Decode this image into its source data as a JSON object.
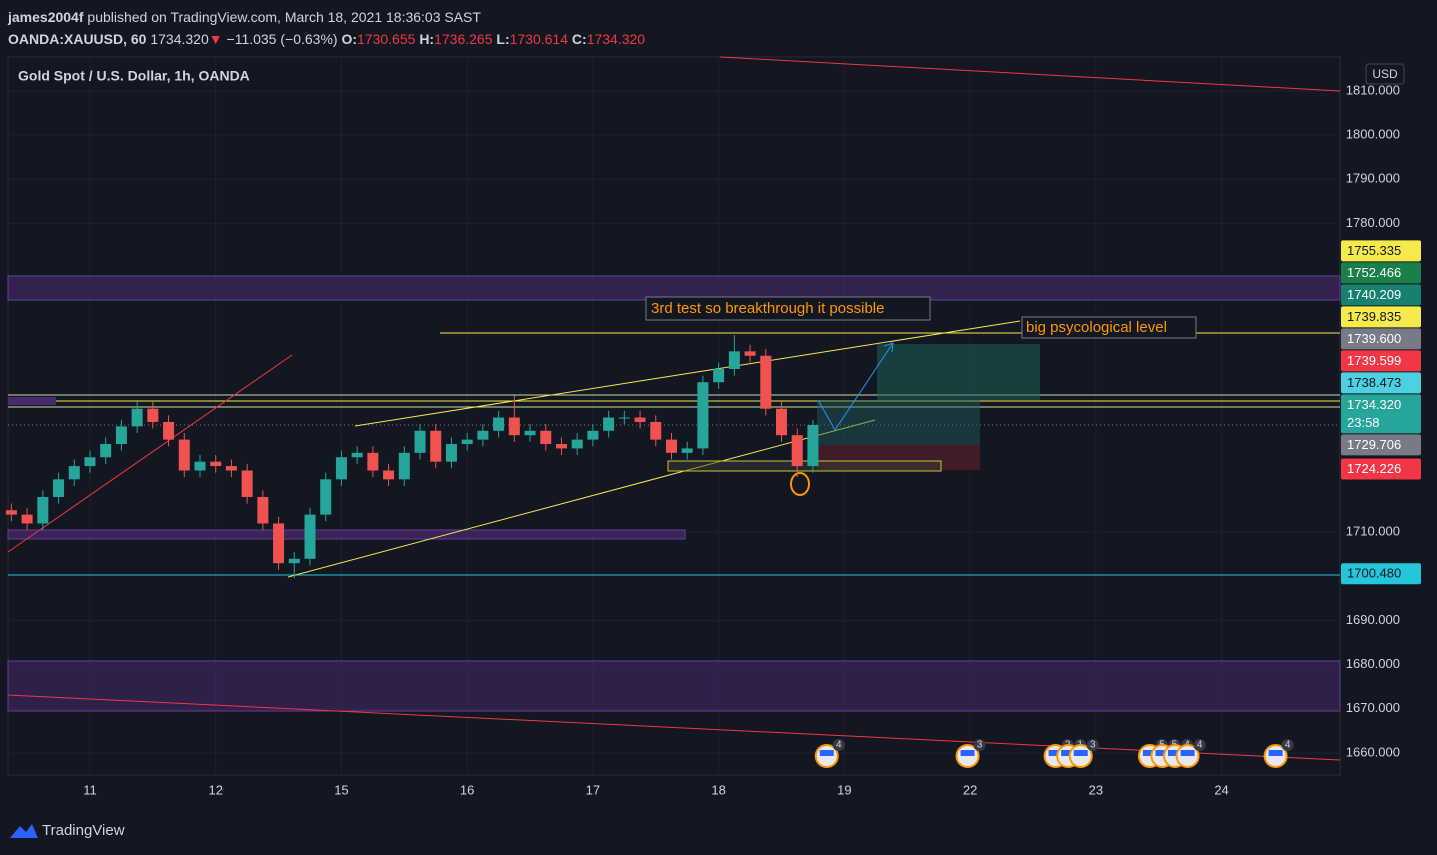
{
  "header": {
    "user": "james2004f",
    "published": "published on TradingView.com, March 18, 2021 18:36:03 SAST",
    "symbol": "OANDA:XAUUSD, 60",
    "last": "1734.320",
    "arrow": "▼",
    "change": "−11.035 (−0.63%)",
    "o_label": "O:",
    "open": "1730.655",
    "h_label": "H:",
    "high": "1736.265",
    "l_label": "L:",
    "low": "1730.614",
    "c_label": "C:",
    "close": "1734.320"
  },
  "footer": {
    "brand": "TradingView"
  },
  "chart_data": {
    "type": "candlestick",
    "title": "Gold Spot / U.S. Dollar, 1h, OANDA",
    "currency": "USD",
    "up_color": "#26a69a",
    "down_color": "#ef5350",
    "grid": true,
    "xlim": [
      0.348,
      10.942
    ],
    "ylim": [
      1655,
      1817.7
    ],
    "xticks": [
      {
        "value": 1,
        "label": "11"
      },
      {
        "value": 2,
        "label": "12"
      },
      {
        "value": 3,
        "label": "15"
      },
      {
        "value": 4,
        "label": "16"
      },
      {
        "value": 5,
        "label": "17"
      },
      {
        "value": 6,
        "label": "18"
      },
      {
        "value": 7,
        "label": "19"
      },
      {
        "value": 8,
        "label": "22"
      },
      {
        "value": 9,
        "label": "23"
      },
      {
        "value": 10,
        "label": "24"
      }
    ],
    "yticks": [
      {
        "value": 1660,
        "label": "1660.000"
      },
      {
        "value": 1670,
        "label": "1670.000"
      },
      {
        "value": 1680,
        "label": "1680.000"
      },
      {
        "value": 1690,
        "label": "1690.000"
      },
      {
        "value": 1710,
        "label": "1710.000"
      },
      {
        "value": 1780,
        "label": "1780.000"
      },
      {
        "value": 1790,
        "label": "1790.000"
      },
      {
        "value": 1800,
        "label": "1800.000"
      },
      {
        "value": 1810,
        "label": "1810.000"
      }
    ],
    "x": [
      0.375,
      0.5,
      0.625,
      0.75,
      0.875,
      1.0,
      1.125,
      1.25,
      1.375,
      1.5,
      1.625,
      1.75,
      1.875,
      2.0,
      2.125,
      2.25,
      2.375,
      2.5,
      2.625,
      2.75,
      2.875,
      3.0,
      3.125,
      3.25,
      3.375,
      3.5,
      3.625,
      3.75,
      3.875,
      4.0,
      4.125,
      4.25,
      4.375,
      4.5,
      4.625,
      4.75,
      4.875,
      5.0,
      5.125,
      5.25,
      5.375,
      5.5,
      5.625,
      5.75,
      5.875,
      6.0,
      6.125,
      6.25,
      6.375,
      6.5,
      6.625,
      6.75
    ],
    "open": [
      1715,
      1714,
      1712,
      1718,
      1722,
      1725,
      1727,
      1730,
      1734,
      1738,
      1735,
      1731,
      1724,
      1726,
      1725,
      1724,
      1718,
      1712,
      1703,
      1704,
      1714,
      1722,
      1727,
      1728,
      1724,
      1722,
      1728,
      1733,
      1726,
      1730,
      1731,
      1733,
      1736,
      1732,
      1733,
      1730,
      1729,
      1731,
      1733,
      1736,
      1736,
      1735,
      1731,
      1728,
      1729,
      1744,
      1747,
      1751,
      1750,
      1738,
      1732,
      1725
    ],
    "high": [
      1716.5,
      1715.5,
      1719.5,
      1723.5,
      1726.5,
      1728.5,
      1731.5,
      1735.5,
      1739.5,
      1739.5,
      1736.5,
      1732.5,
      1727.5,
      1727.5,
      1726.5,
      1725.5,
      1719.5,
      1713.5,
      1705.5,
      1715.5,
      1723.5,
      1728.5,
      1729.5,
      1729.5,
      1725.5,
      1729.5,
      1734.5,
      1734.5,
      1731.5,
      1732.5,
      1734.5,
      1737.5,
      1741,
      1734.5,
      1734.5,
      1731.5,
      1732.5,
      1734.5,
      1737.5,
      1737.5,
      1737.5,
      1736.5,
      1732.5,
      1730.5,
      1745.5,
      1748.5,
      1754.7,
      1752.5,
      1751.5,
      1739.5,
      1733.5,
      1735.5
    ],
    "low": [
      1712.5,
      1710.5,
      1710.5,
      1716.5,
      1720.5,
      1723.5,
      1725.5,
      1728.5,
      1732.5,
      1733.5,
      1729.5,
      1722.5,
      1722.5,
      1723.5,
      1722.5,
      1716.5,
      1710.5,
      1701.5,
      1699.6,
      1702.5,
      1712.5,
      1720.5,
      1725.5,
      1722.5,
      1720.5,
      1720.5,
      1726.5,
      1724.5,
      1724.5,
      1728.5,
      1729.5,
      1731.5,
      1730.5,
      1730.5,
      1728.5,
      1727.5,
      1727.5,
      1729.5,
      1731.5,
      1734.5,
      1733.5,
      1729.5,
      1726.5,
      1726.5,
      1727.5,
      1742.5,
      1745.5,
      1748.5,
      1736.5,
      1730.5,
      1722.5,
      1723.5
    ],
    "close": [
      1714,
      1712,
      1718,
      1722,
      1725,
      1727,
      1730,
      1734,
      1738,
      1735,
      1731,
      1724,
      1726,
      1725,
      1724,
      1718,
      1712,
      1703,
      1704,
      1714,
      1722,
      1727,
      1728,
      1724,
      1722,
      1728,
      1733,
      1726,
      1730,
      1731,
      1733,
      1736,
      1732,
      1733,
      1730,
      1729,
      1731,
      1733,
      1736,
      1736,
      1735,
      1731,
      1728,
      1729,
      1744,
      1747,
      1751,
      1750,
      1738,
      1732,
      1725,
      1734.32
    ],
    "price_labels": [
      {
        "value": 1755.335,
        "label": "1755.335",
        "color": "#f5e94b",
        "text_color": "#131722"
      },
      {
        "value": 1752.466,
        "label": "1752.466",
        "color": "#1b7f4a",
        "text_color": "#ffffff"
      },
      {
        "value": 1740.209,
        "label": "1740.209",
        "color": "#17806f",
        "text_color": "#ffffff"
      },
      {
        "value": 1739.835,
        "label": "1739.835",
        "color": "#f5e94b",
        "text_color": "#131722"
      },
      {
        "value": 1739.6,
        "label": "1739.600",
        "color": "#787b86",
        "text_color": "#ffffff"
      },
      {
        "value": 1739.599,
        "label": "1739.599",
        "color": "#f23645",
        "text_color": "#ffffff"
      },
      {
        "value": 1738.473,
        "label": "1738.473",
        "color": "#4dd0e1",
        "text_color": "#131722"
      },
      {
        "value": 1734.32,
        "label": "1734.320",
        "color": "#26a69a",
        "text_color": "#ffffff",
        "countdown": "23:58"
      },
      {
        "value": 1729.706,
        "label": "1729.706",
        "color": "#787b86",
        "text_color": "#ffffff"
      },
      {
        "value": 1724.226,
        "label": "1724.226",
        "color": "#f23645",
        "text_color": "#ffffff"
      },
      {
        "value": 1700.48,
        "label": "1700.480",
        "color": "#26c6da",
        "text_color": "#131722"
      }
    ],
    "annotations": [
      "3rd test so breakthrough it possible",
      "big psycological level"
    ],
    "events": [
      {
        "x": 6.86,
        "label": "4"
      },
      {
        "x": 7.98,
        "label": "3"
      },
      {
        "x": 8.68,
        "label": "2"
      },
      {
        "x": 8.78,
        "label": "1"
      },
      {
        "x": 8.88,
        "label": "3"
      },
      {
        "x": 9.43,
        "label": "5"
      },
      {
        "x": 9.53,
        "label": "5"
      },
      {
        "x": 9.63,
        "label": "4"
      },
      {
        "x": 9.73,
        "label": "4"
      },
      {
        "x": 10.43,
        "label": "4"
      }
    ]
  }
}
